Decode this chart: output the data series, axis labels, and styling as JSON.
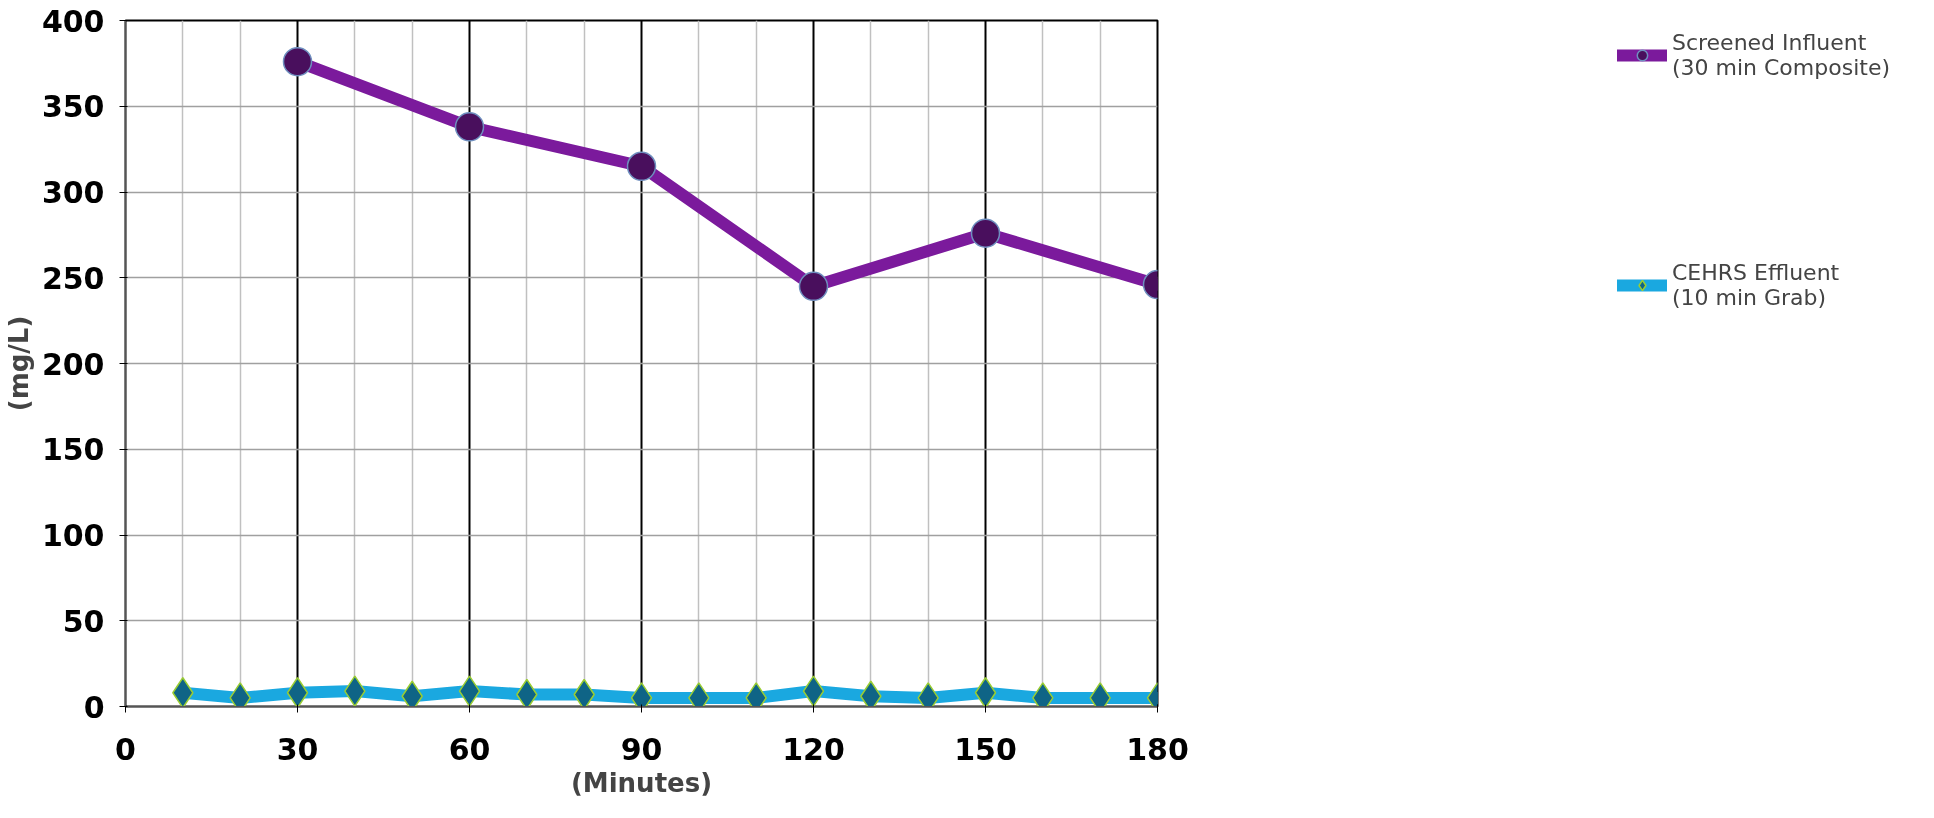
{
  "chart_data": {
    "type": "line",
    "xlabel": "(Minutes)",
    "ylabel": "(mg/L)",
    "xlim": [
      0,
      180
    ],
    "ylim": [
      0,
      400
    ],
    "xticks": [
      0,
      30,
      60,
      90,
      120,
      150,
      180
    ],
    "yticks": [
      0,
      50,
      100,
      150,
      200,
      250,
      300,
      350,
      400
    ],
    "grid": true,
    "legend": "right",
    "line_style": "solid",
    "series": [
      {
        "name": "Screened Influent\n(30 min Composite)",
        "color": "#7b1a9c",
        "marker": "circle",
        "x": [
          30,
          60,
          90,
          120,
          150,
          180
        ],
        "values": [
          376,
          338,
          315,
          245,
          276,
          246
        ]
      },
      {
        "name": "CEHRS Effluent\n(10 min Grab)",
        "color": "#1aa8e0",
        "marker": "diamond",
        "x": [
          10,
          20,
          30,
          40,
          50,
          60,
          70,
          80,
          90,
          100,
          110,
          120,
          130,
          140,
          150,
          160,
          170,
          180
        ],
        "values": [
          8,
          5,
          8,
          9,
          6,
          9,
          7,
          7,
          5,
          5,
          5,
          9,
          6,
          5,
          8,
          5,
          5,
          5
        ]
      }
    ]
  }
}
